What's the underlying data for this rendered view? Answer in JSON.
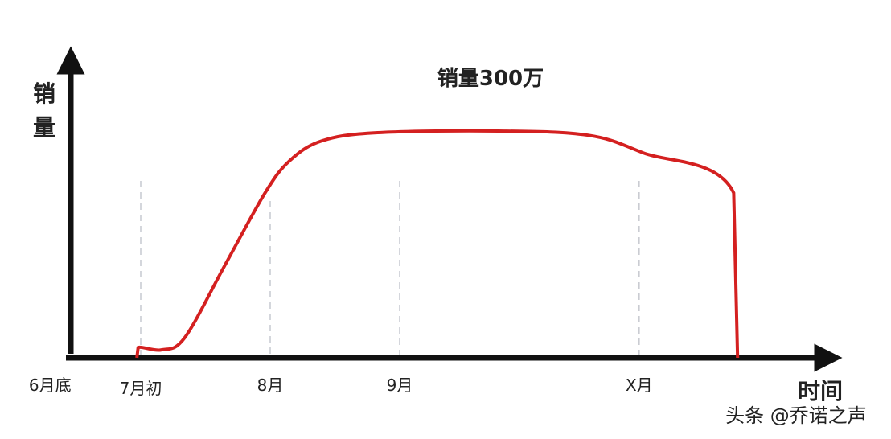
{
  "chart_data": {
    "type": "line",
    "title": "销量300万",
    "ylabel": "销量",
    "xlabel": "时间",
    "grid": false,
    "legend": "none",
    "y_ticks_shown": false,
    "x_ticks": [
      {
        "label": "6月底",
        "x": 6.3,
        "guide": false
      },
      {
        "label": "7月初",
        "x": 7.0,
        "guide": true
      },
      {
        "label": "8月",
        "x": 8.0,
        "guide": true
      },
      {
        "label": "9月",
        "x": 9.0,
        "guide": true
      },
      {
        "label": "X月",
        "x": 10.85,
        "guide": true
      }
    ],
    "series": [
      {
        "color": "#d42020",
        "points": [
          [
            6.97,
            0
          ],
          [
            6.98,
            4.6
          ],
          [
            7.16,
            3.5
          ],
          [
            7.34,
            8.9
          ],
          [
            7.65,
            40.8
          ],
          [
            7.96,
            72.7
          ],
          [
            8.15,
            86.9
          ],
          [
            8.4,
            95.7
          ],
          [
            8.83,
            99.3
          ],
          [
            9.76,
            100
          ],
          [
            10.45,
            98.2
          ],
          [
            10.88,
            90.4
          ],
          [
            11.58,
            72.7
          ],
          [
            11.61,
            0
          ]
        ]
      }
    ]
  },
  "watermark": "头条 @乔诺之声"
}
